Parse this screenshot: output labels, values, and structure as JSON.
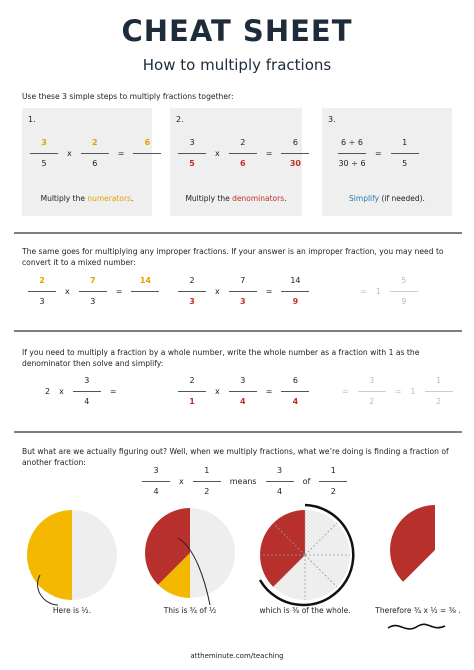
{
  "header": {
    "title": "CHEAT SHEET",
    "subtitle": "How to multiply fractions"
  },
  "steps": {
    "intro": "Use these 3 simple steps to multiply fractions together:",
    "items": [
      {
        "number": "1.",
        "equation": [
          {
            "n": "3",
            "d": "5"
          },
          "x",
          {
            "n": "2",
            "d": "6"
          },
          "=",
          {
            "n": "6"
          }
        ],
        "caption": [
          "Multiply the ",
          "numerators",
          "."
        ]
      },
      {
        "number": "2.",
        "equation": [
          {
            "n": "3",
            "d": "5"
          },
          "x",
          {
            "n": "2",
            "d": "6"
          },
          "=",
          {
            "n": "6",
            "d": "30"
          }
        ],
        "caption": [
          "Multiply the ",
          "denominators",
          "."
        ]
      },
      {
        "number": "3.",
        "equation": [
          {
            "n": "6 ÷ 6",
            "d": "30 ÷ 6"
          },
          "=",
          {
            "n": "1",
            "d": "5"
          }
        ],
        "caption": [
          "Simplify",
          " (if needed)."
        ]
      }
    ]
  },
  "improper": {
    "text": "The same goes for multiplying any improper fractions. If your answer is an improper fraction, you may need to convert it to a mixed number:",
    "equations": [
      [
        {
          "n": "2",
          "d": "3"
        },
        "x",
        {
          "n": "7",
          "d": "3"
        },
        "=",
        {
          "n": "14"
        }
      ],
      [
        {
          "n": "2",
          "d": "3"
        },
        "x",
        {
          "n": "7",
          "d": "3"
        },
        "=",
        {
          "n": "14",
          "d": "9"
        }
      ],
      [
        "=",
        "1",
        {
          "n": "5",
          "d": "9"
        }
      ]
    ]
  },
  "whole": {
    "text": "If you need to multiply a fraction by a whole number, write the whole number as a fraction with 1 as the denominator then solve and simplify:",
    "equations": [
      [
        "2",
        "x",
        {
          "n": "3",
          "d": "4"
        },
        "="
      ],
      [
        {
          "n": "2",
          "d": "1"
        },
        "x",
        {
          "n": "3",
          "d": "4"
        },
        "=",
        {
          "n": "6",
          "d": "4"
        }
      ],
      [
        "=",
        {
          "n": "3",
          "d": "2"
        },
        "=",
        "1",
        {
          "n": "1",
          "d": "2"
        }
      ]
    ]
  },
  "meaning": {
    "text": "But what are we actually figuring out? Well, when we multiply fractions, what we’re doing is finding a fraction of another fraction:",
    "equation": [
      {
        "n": "3",
        "d": "4"
      },
      "x",
      {
        "n": "1",
        "d": "2"
      },
      "means",
      {
        "n": "3",
        "d": "4"
      },
      "of",
      {
        "n": "1",
        "d": "2"
      }
    ],
    "captions": [
      "Here is ½.",
      "This is ¾ of ½",
      "which is ⅜ of the whole.",
      "Therefore ¾ x ½ = ⅜ ."
    ]
  },
  "footer": "attheminute.com/teaching"
}
